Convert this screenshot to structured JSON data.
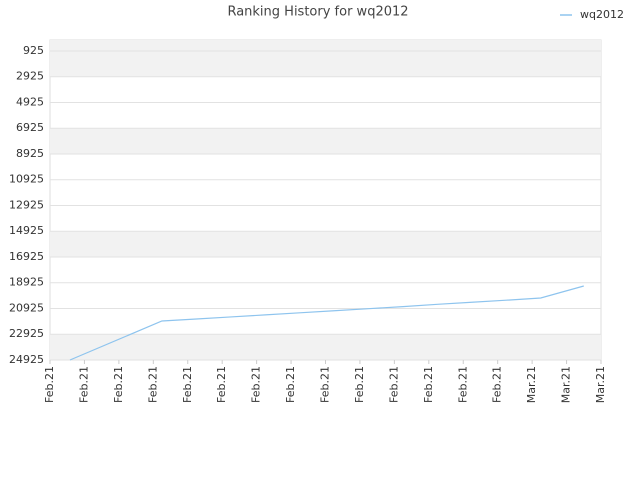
{
  "chart_data": {
    "type": "line",
    "title": "Ranking History for wq2012",
    "x": [
      0.58,
      3.25,
      4.25,
      5.25,
      6.25,
      7.25,
      8.25,
      9.25,
      10.25,
      11.25,
      12.25,
      13.25,
      14.25,
      15.5
    ],
    "series": [
      {
        "name": "wq2012",
        "color": "#8ec4ee",
        "values": [
          24925,
          21896,
          21740,
          21580,
          21420,
          21260,
          21100,
          20940,
          20780,
          20600,
          20440,
          20280,
          20110,
          19177
        ]
      }
    ],
    "xlim": [
      0,
      16
    ],
    "xticks": [
      {
        "value": 0,
        "label": "Feb.21"
      },
      {
        "value": 1,
        "label": "Feb.21"
      },
      {
        "value": 2,
        "label": "Feb.21"
      },
      {
        "value": 3,
        "label": "Feb.21"
      },
      {
        "value": 4,
        "label": "Feb.21"
      },
      {
        "value": 5,
        "label": "Feb.21"
      },
      {
        "value": 6,
        "label": "Feb.21"
      },
      {
        "value": 7,
        "label": "Feb.21"
      },
      {
        "value": 8,
        "label": "Feb.21"
      },
      {
        "value": 9,
        "label": "Feb.21"
      },
      {
        "value": 10,
        "label": "Feb.21"
      },
      {
        "value": 11,
        "label": "Feb.21"
      },
      {
        "value": 12,
        "label": "Feb.21"
      },
      {
        "value": 13,
        "label": "Feb.21"
      },
      {
        "value": 14,
        "label": "Mar.21"
      },
      {
        "value": 15,
        "label": "Mar.21"
      },
      {
        "value": 16,
        "label": "Mar.21"
      }
    ],
    "ylim": [
      24925,
      71
    ],
    "yticks": [
      925,
      2925,
      4925,
      6925,
      8925,
      10925,
      12925,
      14925,
      16925,
      18925,
      20925,
      22925,
      24925
    ],
    "grid": true,
    "legend": "top-right"
  }
}
